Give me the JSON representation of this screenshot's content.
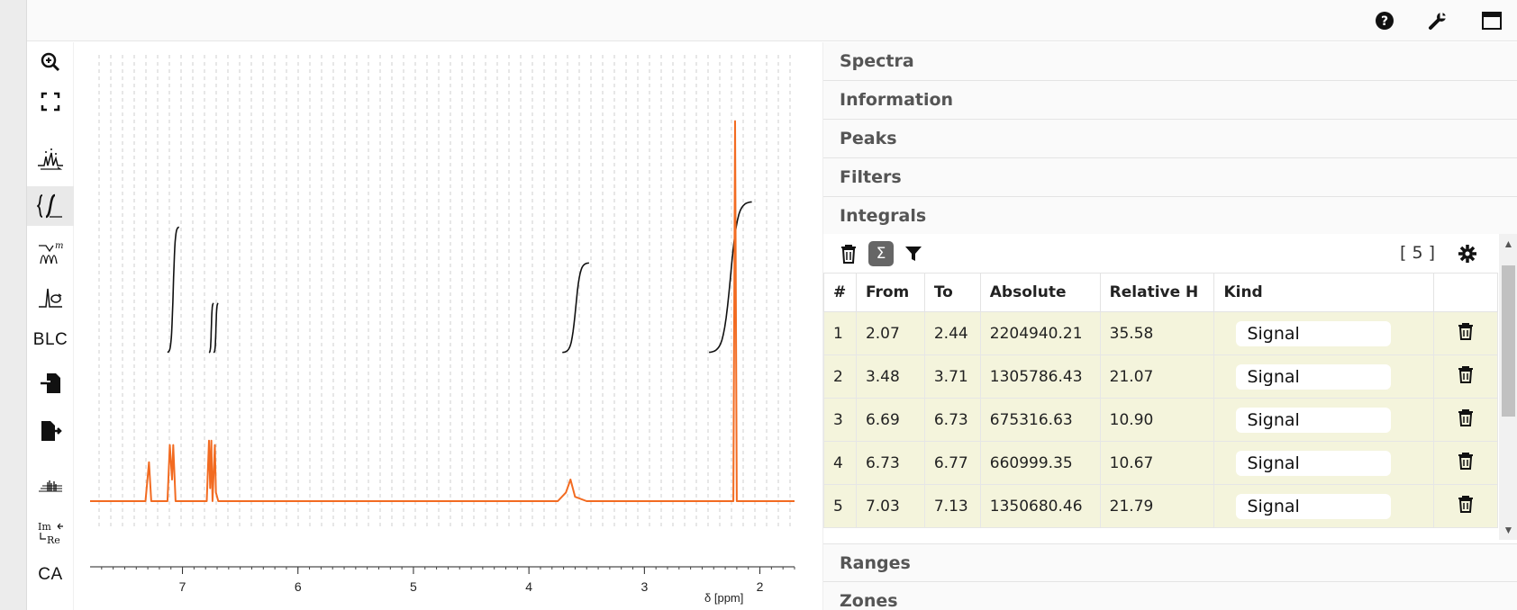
{
  "topbar": {
    "icons": [
      "help-icon",
      "wrench-icon",
      "window-icon"
    ]
  },
  "toolbar": {
    "items": [
      {
        "name": "zoom-in-tool",
        "icon": "zoom-in-icon"
      },
      {
        "name": "fullscreen-tool",
        "icon": "fullscreen-icon"
      },
      {
        "name": "peak-picking-tool",
        "icon": "peak-picking-icon"
      },
      {
        "name": "integral-tool",
        "icon": "integral-icon",
        "active": true
      },
      {
        "name": "multiplet-tool",
        "icon": "multiplet-icon"
      },
      {
        "name": "phase-correction-tool",
        "icon": "phase-correction-icon"
      },
      {
        "name": "baseline-correction-tool",
        "label": "BLC"
      },
      {
        "name": "import-tool",
        "icon": "import-file-icon"
      },
      {
        "name": "export-tool",
        "icon": "export-file-icon"
      },
      {
        "name": "stacked-spectra-tool",
        "icon": "stacked-spectra-icon"
      },
      {
        "name": "real-imaginary-tool",
        "icon": "real-imaginary-icon"
      },
      {
        "name": "ca-tool",
        "label": "CA"
      }
    ]
  },
  "chart_data": {
    "type": "line",
    "xlabel": "δ [ppm]",
    "x_reversed": true,
    "xlim": [
      7.8,
      1.7
    ],
    "x_ticks": [
      7,
      6,
      5,
      4,
      3,
      2
    ],
    "grid": true,
    "series": [
      {
        "color": "#f26b21",
        "x": [
          7.8,
          7.32,
          7.29,
          7.27,
          7.13,
          7.11,
          7.09,
          7.08,
          7.06,
          7.03,
          6.79,
          6.77,
          6.76,
          6.75,
          6.74,
          6.72,
          6.71,
          6.69,
          3.75,
          3.68,
          3.64,
          3.6,
          3.5,
          2.23,
          2.215,
          2.2,
          2.18,
          1.7
        ],
        "y": [
          0.0,
          0.0,
          0.09,
          0.0,
          0.0,
          0.13,
          0.05,
          0.13,
          0.0,
          0.0,
          0.0,
          0.14,
          0.03,
          0.14,
          0.0,
          0.13,
          0.02,
          0.0,
          0.0,
          0.02,
          0.05,
          0.01,
          0.0,
          0.0,
          0.88,
          0.0,
          0.0,
          0.0
        ]
      }
    ],
    "integral_curves": [
      {
        "from": 7.13,
        "to": 7.03
      },
      {
        "from": 6.77,
        "to": 6.73
      },
      {
        "from": 6.73,
        "to": 6.69
      },
      {
        "from": 3.71,
        "to": 3.48
      },
      {
        "from": 2.44,
        "to": 2.07
      }
    ]
  },
  "panel": {
    "sections": [
      "Spectra",
      "Information",
      "Peaks",
      "Filters",
      "Integrals"
    ],
    "bottom_sections": [
      "Ranges",
      "Zones"
    ],
    "integrals": {
      "count": "[ 5 ]",
      "columns": [
        "#",
        "From",
        "To",
        "Absolute",
        "Relative H",
        "Kind",
        ""
      ],
      "rows": [
        {
          "n": "1",
          "from": "2.07",
          "to": "2.44",
          "absolute": "2204940.21",
          "relative": "35.58",
          "kind": "Signal"
        },
        {
          "n": "2",
          "from": "3.48",
          "to": "3.71",
          "absolute": "1305786.43",
          "relative": "21.07",
          "kind": "Signal"
        },
        {
          "n": "3",
          "from": "6.69",
          "to": "6.73",
          "absolute": "675316.63",
          "relative": "10.90",
          "kind": "Signal"
        },
        {
          "n": "4",
          "from": "6.73",
          "to": "6.77",
          "absolute": "660999.35",
          "relative": "10.67",
          "kind": "Signal"
        },
        {
          "n": "5",
          "from": "7.03",
          "to": "7.13",
          "absolute": "1350680.46",
          "relative": "21.79",
          "kind": "Signal"
        }
      ]
    }
  }
}
